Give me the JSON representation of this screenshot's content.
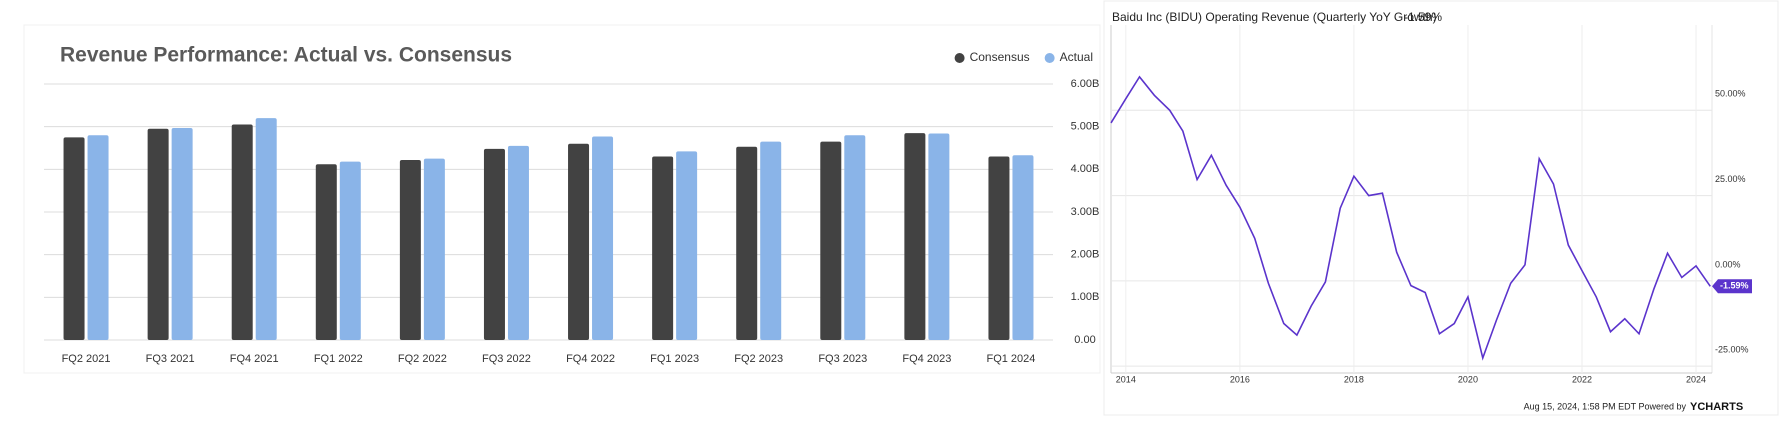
{
  "chart_data": [
    {
      "type": "bar",
      "title": "Revenue Performance: Actual vs. Consensus",
      "categories": [
        "FQ2 2021",
        "FQ3 2021",
        "FQ4 2021",
        "FQ1 2022",
        "FQ2 2022",
        "FQ3 2022",
        "FQ4 2022",
        "FQ1 2023",
        "FQ2 2023",
        "FQ3 2023",
        "FQ4 2023",
        "FQ1 2024"
      ],
      "series": [
        {
          "name": "Consensus",
          "color": "#424242",
          "values": [
            4.75,
            4.95,
            5.05,
            4.12,
            4.22,
            4.48,
            4.6,
            4.3,
            4.53,
            4.65,
            4.85,
            4.3
          ]
        },
        {
          "name": "Actual",
          "color": "#8ab4e8",
          "values": [
            4.8,
            4.97,
            5.2,
            4.18,
            4.25,
            4.55,
            4.77,
            4.42,
            4.65,
            4.8,
            4.84,
            4.33
          ]
        }
      ],
      "ylim": [
        0,
        6
      ],
      "yticks": [
        {
          "value": 0,
          "label": "0.00"
        },
        {
          "value": 1,
          "label": "1.00B"
        },
        {
          "value": 2,
          "label": "2.00B"
        },
        {
          "value": 3,
          "label": "3.00B"
        },
        {
          "value": 4,
          "label": "4.00B"
        },
        {
          "value": 5,
          "label": "5.00B"
        },
        {
          "value": 6,
          "label": "6.00B"
        }
      ],
      "grid": true,
      "legend": "top-right"
    },
    {
      "type": "line",
      "title": "Baidu Inc (BIDU) Operating Revenue (Quarterly YoY Growth)",
      "x": [
        2013.74,
        2014.0,
        2014.24,
        2014.5,
        2014.77,
        2015.0,
        2015.25,
        2015.5,
        2015.76,
        2016.0,
        2016.26,
        2016.5,
        2016.77,
        2017.0,
        2017.25,
        2017.5,
        2017.76,
        2018.0,
        2018.26,
        2018.5,
        2018.75,
        2019.0,
        2019.25,
        2019.5,
        2019.76,
        2020.0,
        2020.26,
        2020.5,
        2020.75,
        2021.0,
        2021.25,
        2021.5,
        2021.76,
        2022.0,
        2022.25,
        2022.5,
        2022.75,
        2023.0,
        2023.26,
        2023.5,
        2023.75,
        2024.0,
        2024.25
      ],
      "series": [
        {
          "name": "Baidu Inc (BIDU) Operating Revenue (Quarterly YoY Growth)",
          "color": "#5b34cc",
          "values": [
            46.3,
            53.4,
            59.8,
            54.4,
            50,
            43.9,
            29.7,
            36.8,
            28,
            21.6,
            12.5,
            -0.7,
            -12.5,
            -15.9,
            -7.4,
            -0.3,
            21.3,
            30.7,
            25,
            25.7,
            8.4,
            -1.4,
            -3.4,
            -15.5,
            -12.5,
            -4.7,
            -22.6,
            -11.5,
            -0.7,
            4.7,
            35.8,
            28.4,
            10.5,
            3,
            -4.7,
            -14.9,
            -11.1,
            -15.5,
            -2.4,
            8.1,
            1,
            4.4,
            -1.59
          ],
          "value_labels": [
            null,
            null,
            null,
            null,
            null,
            null,
            null,
            null,
            null,
            null,
            null,
            null,
            null,
            null,
            null,
            null,
            null,
            null,
            null,
            null,
            null,
            null,
            null,
            null,
            null,
            null,
            null,
            null,
            null,
            null,
            null,
            null,
            null,
            null,
            null,
            null,
            null,
            null,
            null,
            null,
            null,
            null,
            "-1.59%"
          ]
        }
      ],
      "xlim": [
        2013.74,
        2024.28
      ],
      "xticks": [
        2014,
        2016,
        2018,
        2020,
        2022,
        2024
      ],
      "ylim": [
        -27,
        75
      ],
      "yticks": [
        {
          "value": -25,
          "label": "-25.00%"
        },
        {
          "value": 0,
          "label": "0.00%"
        },
        {
          "value": 25,
          "label": "25.00%"
        },
        {
          "value": 50,
          "label": "50.00%"
        }
      ],
      "grid": true,
      "source": "Aug 15, 2024, 1:58 PM EDT Powered by",
      "brand": "YCHARTS"
    }
  ]
}
